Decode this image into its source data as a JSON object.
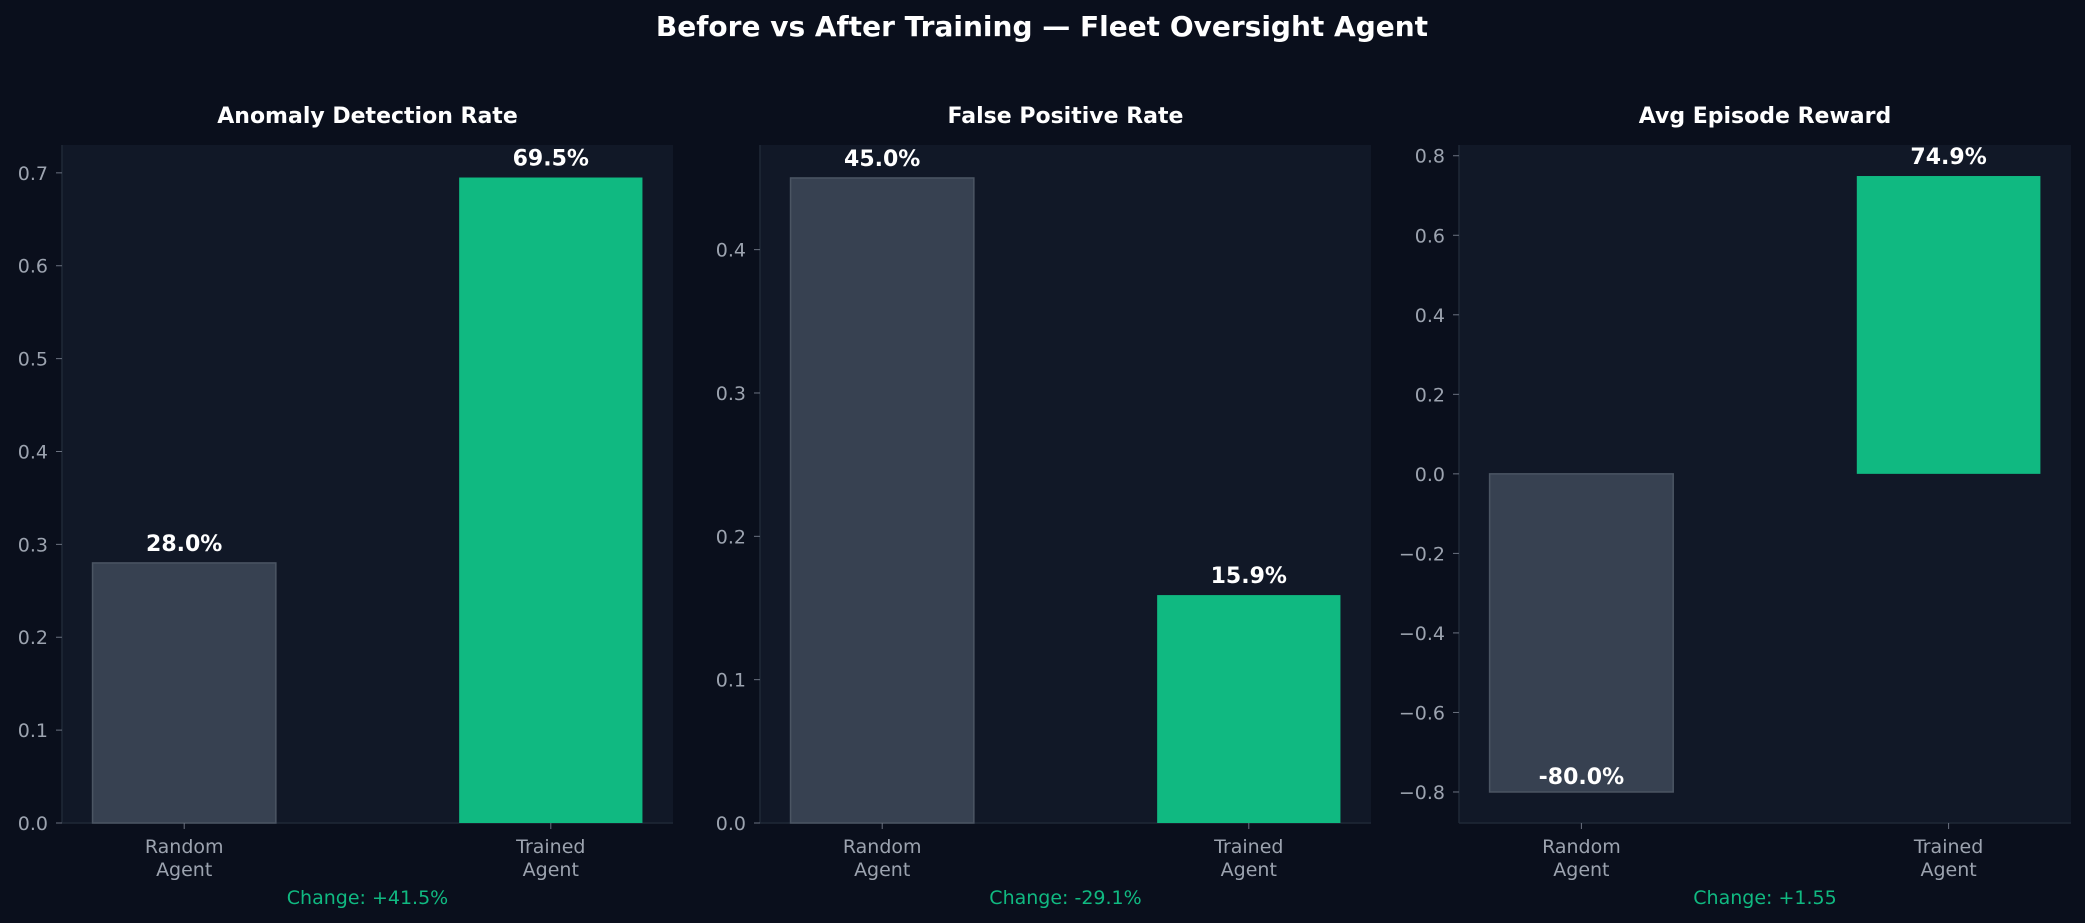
{
  "title": "Before vs After Training — Fleet Oversight Agent",
  "colors": {
    "background": "#0a0f1c",
    "panel": "#111827",
    "random_bar": "#374151",
    "trained_bar": "#10b981",
    "text": "#ffffff",
    "tick_text": "#9ca3af",
    "change_text": "#10b981"
  },
  "chart_data": [
    {
      "type": "bar",
      "title": "Anomaly Detection Rate",
      "categories": [
        "Random\nAgent",
        "Trained\nAgent"
      ],
      "values": [
        0.28,
        0.695
      ],
      "value_labels": [
        "28.0%",
        "69.5%"
      ],
      "ylim": [
        0,
        0.73
      ],
      "yticks": [
        0.0,
        0.1,
        0.2,
        0.3,
        0.4,
        0.5,
        0.6,
        0.7
      ],
      "ytick_labels": [
        "0.0",
        "0.1",
        "0.2",
        "0.3",
        "0.4",
        "0.5",
        "0.6",
        "0.7"
      ],
      "footer": "Change: +41.5%"
    },
    {
      "type": "bar",
      "title": "False Positive Rate",
      "categories": [
        "Random\nAgent",
        "Trained\nAgent"
      ],
      "values": [
        0.45,
        0.159
      ],
      "value_labels": [
        "45.0%",
        "15.9%"
      ],
      "ylim": [
        0,
        0.473
      ],
      "yticks": [
        0.0,
        0.1,
        0.2,
        0.3,
        0.4
      ],
      "ytick_labels": [
        "0.0",
        "0.1",
        "0.2",
        "0.3",
        "0.4"
      ],
      "footer": "Change: -29.1%"
    },
    {
      "type": "bar",
      "title": "Avg Episode Reward",
      "categories": [
        "Random\nAgent",
        "Trained\nAgent"
      ],
      "values": [
        -0.8,
        0.749
      ],
      "value_labels": [
        "-80.0%",
        "74.9%"
      ],
      "ylim": [
        -0.878,
        0.827
      ],
      "yticks": [
        -0.8,
        -0.6,
        -0.4,
        -0.2,
        0.0,
        0.2,
        0.4,
        0.6,
        0.8
      ],
      "ytick_labels": [
        "−0.8",
        "−0.6",
        "−0.4",
        "−0.2",
        "0.0",
        "0.2",
        "0.4",
        "0.6",
        "0.8"
      ],
      "footer": "Change: +1.55"
    }
  ]
}
